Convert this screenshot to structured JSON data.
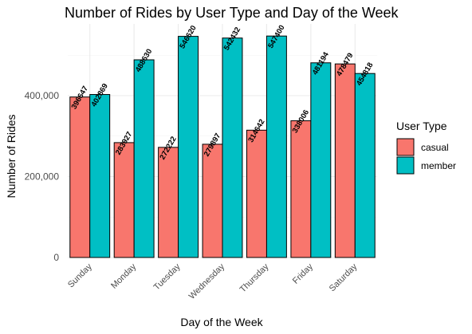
{
  "chart_data": {
    "type": "bar",
    "title": "Number of Rides by User Type and Day of the Week",
    "xlabel": "Day of the Week",
    "ylabel": "Number of Rides",
    "categories": [
      "Sunday",
      "Monday",
      "Tuesday",
      "Wednesday",
      "Thursday",
      "Friday",
      "Saturday"
    ],
    "series": [
      {
        "name": "casual",
        "color": "#F8766D",
        "values": [
          396647,
          283927,
          272222,
          279897,
          314642,
          338006,
          478479
        ],
        "labels": [
          "396647",
          "283927",
          "272222",
          "279897",
          "314642",
          "338006",
          "478479"
        ]
      },
      {
        "name": "member",
        "color": "#00BFC4",
        "values": [
          402869,
          488630,
          546620,
          542432,
          547400,
          481194,
          454818
        ],
        "labels": [
          "402869",
          "488630",
          "546620",
          "542432",
          "547400",
          "481194",
          "454818"
        ]
      }
    ],
    "ylim": [
      0,
      570000
    ],
    "yticks": [
      0,
      200000,
      400000
    ],
    "ytick_labels": [
      "0",
      "200,000",
      "400,000"
    ],
    "grid": true,
    "legend": {
      "title": "User Type",
      "position": "right"
    }
  }
}
